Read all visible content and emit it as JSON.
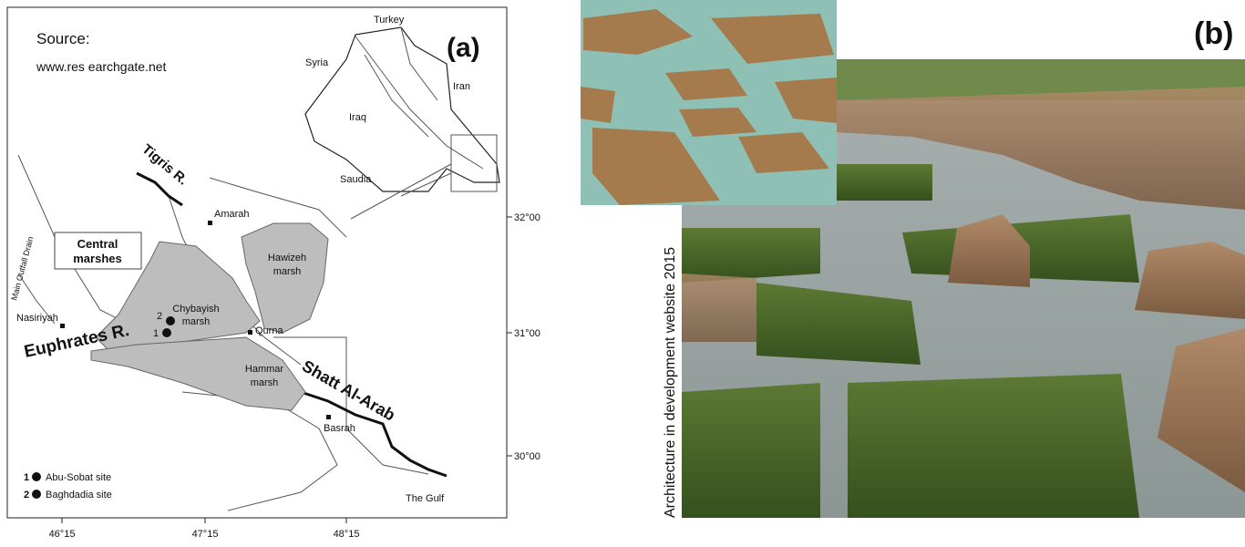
{
  "panel_a": {
    "label": "(a)",
    "source": "Source:",
    "source_url": "www.res earchgate.net",
    "countries": [
      "Turkey",
      "Syria",
      "Iran",
      "Iraq",
      "Saudia"
    ],
    "rivers": [
      "Tigris R.",
      "Euphrates R.",
      "Shatt Al-Arab",
      "Main Outfall Drain"
    ],
    "marshes": [
      {
        "lines": [
          "Central",
          "marshes"
        ]
      },
      {
        "lines": [
          "Hawizeh",
          "marsh"
        ]
      },
      {
        "lines": [
          "Chybayish",
          "marsh"
        ]
      },
      {
        "lines": [
          "Hammar",
          "marsh"
        ]
      }
    ],
    "towns": [
      "Amarah",
      "Nasiriyah",
      "Qurna",
      "Basrah",
      "The Gulf"
    ],
    "sites": [
      {
        "number": "1",
        "label": "Abu-Sobat site"
      },
      {
        "number": "2",
        "label": "Baghdadia site"
      }
    ],
    "longitudes": [
      "46°15",
      "47°15",
      "48°15"
    ],
    "latitudes": [
      "32°00",
      "31°00",
      "30°00"
    ]
  },
  "panel_b": {
    "label": "(b)",
    "credit": "Architecture in development website 2015"
  }
}
